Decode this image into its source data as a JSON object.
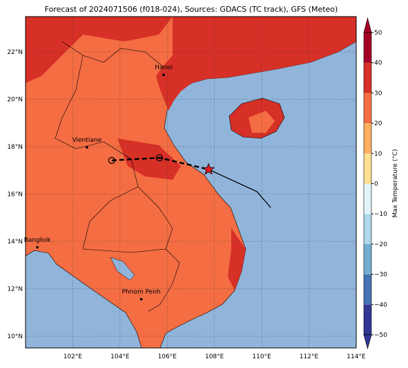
{
  "title": "Forecast of 2024071506 (f018-024), Sources: GDACS (TC track), GFS (Meteo)",
  "lon_ticks": [
    {
      "value": 102,
      "label": "102°E"
    },
    {
      "value": 104,
      "label": "104°E"
    },
    {
      "value": 106,
      "label": "106°E"
    },
    {
      "value": 108,
      "label": "108°E"
    },
    {
      "value": 110,
      "label": "110°E"
    },
    {
      "value": 112,
      "label": "112°E"
    },
    {
      "value": 114,
      "label": "114°E"
    }
  ],
  "lat_ticks": [
    {
      "value": 10,
      "label": "10°N"
    },
    {
      "value": 12,
      "label": "12°N"
    },
    {
      "value": 14,
      "label": "14°N"
    },
    {
      "value": 16,
      "label": "16°N"
    },
    {
      "value": 18,
      "label": "18°N"
    },
    {
      "value": 20,
      "label": "20°N"
    },
    {
      "value": 22,
      "label": "22°N"
    }
  ],
  "cities": [
    {
      "name": "Hanoi",
      "lon": 105.85,
      "lat": 21.03
    },
    {
      "name": "Vientiane",
      "lon": 102.6,
      "lat": 17.97
    },
    {
      "name": "Bangkok",
      "lon": 100.5,
      "lat": 13.75
    },
    {
      "name": "Phnom Penh",
      "lon": 104.9,
      "lat": 11.56
    }
  ],
  "track_past": [
    {
      "lon": 103.65,
      "lat": 17.42
    },
    {
      "lon": 105.67,
      "lat": 17.53
    },
    {
      "lon": 107.75,
      "lat": 17.04
    }
  ],
  "track_forecast": [
    {
      "lon": 107.75,
      "lat": 17.04
    },
    {
      "lon": 109.8,
      "lat": 16.1
    },
    {
      "lon": 110.38,
      "lat": 15.43
    }
  ],
  "colorbar": {
    "label": "Max Temperature (°C)",
    "ticks": [
      50,
      40,
      30,
      20,
      10,
      0,
      {
        "value": -10,
        "label": "−10"
      },
      {
        "value": -20,
        "label": "−20"
      },
      {
        "value": -30,
        "label": "−30"
      },
      {
        "value": -40,
        "label": "−40"
      },
      {
        "value": -50,
        "label": "−50"
      }
    ],
    "colors": [
      "#313695",
      "#4575b4",
      "#74add1",
      "#abd9e9",
      "#e0f3f8",
      "#fee090",
      "#fdae61",
      "#f46d43",
      "#d73027",
      "#a50026"
    ]
  }
}
